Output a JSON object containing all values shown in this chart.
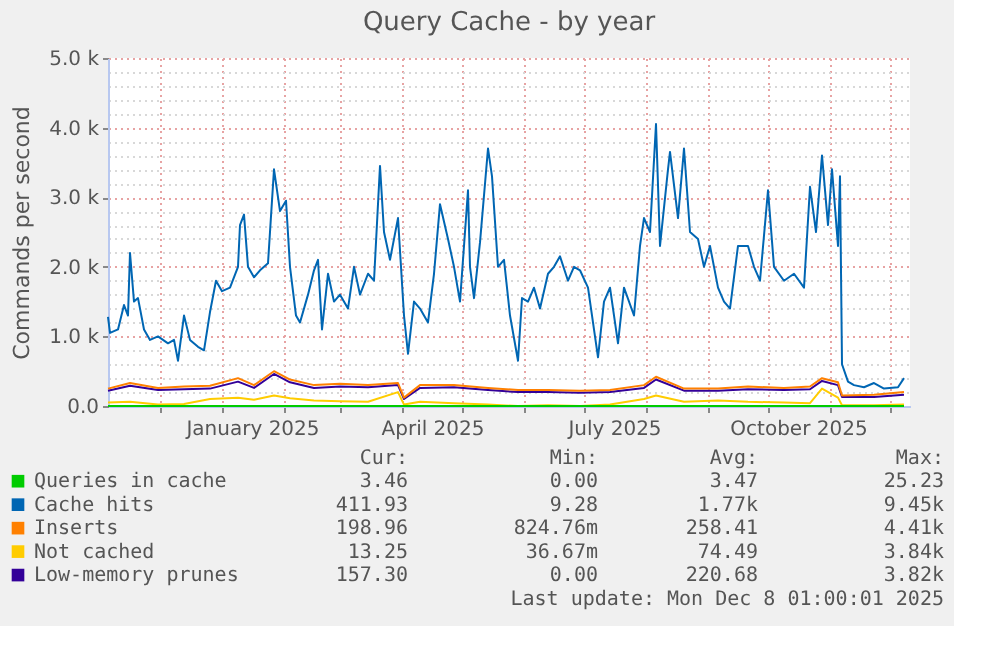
{
  "chart_data": {
    "type": "line",
    "title": "Query Cache - by year",
    "ylabel": "Commands per second",
    "x": [
      "2024-11-05",
      "2024-11-06",
      "2024-11-10",
      "2024-11-13",
      "2024-11-15",
      "2024-11-16",
      "2024-11-18",
      "2024-11-20",
      "2024-11-23",
      "2024-11-26",
      "2024-11-30",
      "2024-12-05",
      "2024-12-08",
      "2024-12-10",
      "2024-12-13",
      "2024-12-16",
      "2024-12-20",
      "2024-12-23",
      "2024-12-26",
      "2024-12-29",
      "2025-01-01",
      "2025-01-05",
      "2025-01-09",
      "2025-01-10",
      "2025-01-12",
      "2025-01-14",
      "2025-01-17",
      "2025-01-20",
      "2025-01-24",
      "2025-01-27",
      "2025-01-30",
      "2025-02-02",
      "2025-02-04",
      "2025-02-07",
      "2025-02-09",
      "2025-02-13",
      "2025-02-16",
      "2025-02-18",
      "2025-02-20",
      "2025-02-23",
      "2025-02-26",
      "2025-03-01",
      "2025-03-05",
      "2025-03-08",
      "2025-03-11",
      "2025-03-15",
      "2025-03-18",
      "2025-03-21",
      "2025-03-23",
      "2025-03-26",
      "2025-03-30",
      "2025-04-02",
      "2025-04-04",
      "2025-04-07",
      "2025-04-10",
      "2025-04-14",
      "2025-04-17",
      "2025-04-20",
      "2025-04-24",
      "2025-04-27",
      "2025-04-30",
      "2025-05-04",
      "2025-05-05",
      "2025-05-07",
      "2025-05-10",
      "2025-05-14",
      "2025-05-16",
      "2025-05-19",
      "2025-05-22",
      "2025-05-25",
      "2025-05-29",
      "2025-05-31",
      "2025-06-03",
      "2025-06-06",
      "2025-06-09",
      "2025-06-13",
      "2025-06-16",
      "2025-06-19",
      "2025-06-23",
      "2025-06-26",
      "2025-06-29",
      "2025-07-03",
      "2025-07-08",
      "2025-07-11",
      "2025-07-14",
      "2025-07-18",
      "2025-07-21",
      "2025-07-26",
      "2025-07-29",
      "2025-07-31",
      "2025-08-03",
      "2025-08-06",
      "2025-08-08",
      "2025-08-12",
      "2025-08-13",
      "2025-08-17",
      "2025-08-20",
      "2025-08-23",
      "2025-08-27",
      "2025-08-30",
      "2025-09-02",
      "2025-09-06",
      "2025-09-09",
      "2025-09-12",
      "2025-09-16",
      "2025-09-21",
      "2025-09-24",
      "2025-09-27",
      "2025-10-01",
      "2025-10-04",
      "2025-10-09",
      "2025-10-14",
      "2025-10-19",
      "2025-10-22",
      "2025-10-25",
      "2025-10-28",
      "2025-10-31",
      "2025-11-02",
      "2025-11-05",
      "2025-11-06",
      "2025-11-07",
      "2025-11-10",
      "2025-11-13",
      "2025-11-18",
      "2025-11-23",
      "2025-11-28",
      "2025-12-05",
      "2025-12-08"
    ],
    "series": [
      {
        "name": "Queries in cache",
        "color": "#00cc00",
        "x": [
          "2024-11-05",
          "2025-03-01",
          "2025-07-01",
          "2025-10-01",
          "2025-12-08"
        ],
        "values": [
          0,
          0,
          0,
          0,
          0
        ]
      },
      {
        "name": "Cache hits",
        "color": "#0066b3",
        "values": [
          1280,
          1050,
          1100,
          1450,
          1300,
          2200,
          1500,
          1550,
          1100,
          950,
          1000,
          900,
          950,
          650,
          1300,
          950,
          850,
          800,
          1350,
          1800,
          1650,
          1700,
          2000,
          2600,
          2750,
          2000,
          1850,
          1950,
          2050,
          3400,
          2800,
          2950,
          2000,
          1300,
          1200,
          1600,
          1950,
          2100,
          1100,
          1900,
          1500,
          1600,
          1400,
          2000,
          1600,
          1900,
          1800,
          3450,
          2500,
          2100,
          2700,
          1300,
          750,
          1500,
          1400,
          1200,
          1900,
          2900,
          2400,
          2000,
          1500,
          3100,
          2000,
          1550,
          2350,
          3700,
          3300,
          2000,
          2100,
          1300,
          650,
          1550,
          1500,
          1700,
          1400,
          1900,
          2000,
          2150,
          1800,
          2000,
          1950,
          1700,
          700,
          1500,
          1700,
          900,
          1700,
          1300,
          2300,
          2700,
          2500,
          4050,
          2300,
          3400,
          3650,
          2700,
          3700,
          2500,
          2400,
          2000,
          2300,
          1700,
          1500,
          1400,
          2300,
          2300,
          2000,
          1800,
          3100,
          2000,
          1800,
          1900,
          1700,
          3150,
          2500,
          3600,
          2600,
          3400,
          2300,
          3300,
          600,
          350,
          300,
          270,
          330,
          250,
          270,
          400
        ]
      },
      {
        "name": "Inserts",
        "color": "#ff8000",
        "x": [
          "2024-11-05",
          "2024-11-16",
          "2024-11-30",
          "2024-12-13",
          "2024-12-26",
          "2025-01-09",
          "2025-01-17",
          "2025-01-27",
          "2025-02-04",
          "2025-02-16",
          "2025-03-01",
          "2025-03-15",
          "2025-03-30",
          "2025-04-02",
          "2025-04-10",
          "2025-04-27",
          "2025-05-14",
          "2025-05-29",
          "2025-06-13",
          "2025-06-29",
          "2025-07-14",
          "2025-07-31",
          "2025-08-06",
          "2025-08-20",
          "2025-09-06",
          "2025-09-21",
          "2025-10-09",
          "2025-10-22",
          "2025-10-28",
          "2025-11-05",
          "2025-11-07",
          "2025-11-23",
          "2025-12-08"
        ],
        "values": [
          250,
          330,
          260,
          280,
          290,
          400,
          300,
          500,
          380,
          300,
          320,
          300,
          330,
          120,
          300,
          300,
          260,
          230,
          230,
          220,
          230,
          300,
          420,
          250,
          250,
          280,
          260,
          280,
          400,
          340,
          150,
          160,
          200
        ]
      },
      {
        "name": "Not cached",
        "color": "#ffcc00",
        "x": [
          "2024-11-05",
          "2024-11-16",
          "2024-11-30",
          "2024-12-13",
          "2024-12-26",
          "2025-01-09",
          "2025-01-17",
          "2025-01-27",
          "2025-02-04",
          "2025-02-16",
          "2025-03-01",
          "2025-03-15",
          "2025-03-30",
          "2025-04-02",
          "2025-04-10",
          "2025-04-27",
          "2025-05-14",
          "2025-05-29",
          "2025-06-13",
          "2025-06-29",
          "2025-07-14",
          "2025-07-31",
          "2025-08-06",
          "2025-08-20",
          "2025-09-06",
          "2025-09-21",
          "2025-10-09",
          "2025-10-22",
          "2025-10-28",
          "2025-11-05",
          "2025-11-07",
          "2025-11-23",
          "2025-12-08"
        ],
        "values": [
          50,
          60,
          20,
          30,
          100,
          120,
          90,
          150,
          110,
          80,
          70,
          60,
          200,
          20,
          60,
          40,
          20,
          0,
          10,
          0,
          20,
          100,
          150,
          60,
          80,
          60,
          50,
          40,
          250,
          120,
          10,
          10,
          20
        ]
      },
      {
        "name": "Low-memory prunes",
        "color": "#330099",
        "x": [
          "2024-11-05",
          "2024-11-16",
          "2024-11-30",
          "2024-12-13",
          "2024-12-26",
          "2025-01-09",
          "2025-01-17",
          "2025-01-27",
          "2025-02-04",
          "2025-02-16",
          "2025-03-01",
          "2025-03-15",
          "2025-03-30",
          "2025-04-02",
          "2025-04-10",
          "2025-04-27",
          "2025-05-14",
          "2025-05-29",
          "2025-06-13",
          "2025-06-29",
          "2025-07-14",
          "2025-07-31",
          "2025-08-06",
          "2025-08-20",
          "2025-09-06",
          "2025-09-21",
          "2025-10-09",
          "2025-10-22",
          "2025-10-28",
          "2025-11-05",
          "2025-11-07",
          "2025-11-23",
          "2025-12-08"
        ],
        "values": [
          220,
          290,
          230,
          240,
          250,
          350,
          260,
          460,
          340,
          260,
          280,
          270,
          300,
          100,
          260,
          270,
          230,
          200,
          200,
          190,
          200,
          260,
          380,
          220,
          220,
          240,
          230,
          240,
          360,
          300,
          130,
          130,
          160
        ]
      }
    ],
    "xlim": [
      "2024-11-05",
      "2025-12-11"
    ],
    "xticks": [
      {
        "value": "2024-12-01",
        "label": null
      },
      {
        "value": "2025-01-01",
        "label": null
      },
      {
        "value": "2025-01-16",
        "label": "January 2025"
      },
      {
        "value": "2025-02-01",
        "label": null
      },
      {
        "value": "2025-03-01",
        "label": null
      },
      {
        "value": "2025-04-01",
        "label": null
      },
      {
        "value": "2025-04-16",
        "label": "April 2025"
      },
      {
        "value": "2025-05-01",
        "label": null
      },
      {
        "value": "2025-06-01",
        "label": null
      },
      {
        "value": "2025-07-01",
        "label": null
      },
      {
        "value": "2025-07-16",
        "label": "July 2025"
      },
      {
        "value": "2025-08-01",
        "label": null
      },
      {
        "value": "2025-09-01",
        "label": null
      },
      {
        "value": "2025-10-01",
        "label": null
      },
      {
        "value": "2025-10-16",
        "label": "October 2025"
      },
      {
        "value": "2025-11-01",
        "label": null
      },
      {
        "value": "2025-12-01",
        "label": null
      }
    ],
    "ylim": [
      0,
      5000
    ],
    "yticks": [
      {
        "value": 0,
        "label": "0.0"
      },
      {
        "value": 200,
        "label": null
      },
      {
        "value": 400,
        "label": null
      },
      {
        "value": 600,
        "label": null
      },
      {
        "value": 800,
        "label": null
      },
      {
        "value": 1000,
        "label": "1.0 k"
      },
      {
        "value": 1200,
        "label": null
      },
      {
        "value": 1400,
        "label": null
      },
      {
        "value": 1600,
        "label": null
      },
      {
        "value": 1800,
        "label": null
      },
      {
        "value": 2000,
        "label": "2.0 k"
      },
      {
        "value": 2200,
        "label": null
      },
      {
        "value": 2400,
        "label": null
      },
      {
        "value": 2600,
        "label": null
      },
      {
        "value": 2800,
        "label": null
      },
      {
        "value": 3000,
        "label": "3.0 k"
      },
      {
        "value": 3200,
        "label": null
      },
      {
        "value": 3400,
        "label": null
      },
      {
        "value": 3600,
        "label": null
      },
      {
        "value": 3800,
        "label": null
      },
      {
        "value": 4000,
        "label": "4.0 k"
      },
      {
        "value": 4200,
        "label": null
      },
      {
        "value": 4400,
        "label": null
      },
      {
        "value": 4600,
        "label": null
      },
      {
        "value": 4800,
        "label": null
      },
      {
        "value": 5000,
        "label": "5.0 k"
      }
    ],
    "grid": true,
    "legend": "bottom",
    "line_style": "solid",
    "marker": "none",
    "annotations": [
      "Cur:",
      "Min:",
      "Avg:",
      "Max:",
      "3.46",
      "0.00",
      "3.47",
      "25.23",
      "411.93",
      "9.28",
      "1.77k",
      "9.45k",
      "198.96",
      "824.76m",
      "258.41",
      "4.41k",
      "13.25",
      "36.67m",
      "74.49",
      "3.84k",
      "157.30",
      "0.00",
      "220.68",
      "3.82k",
      "Last update: Mon Dec  8 01:00:01 2025"
    ]
  }
}
